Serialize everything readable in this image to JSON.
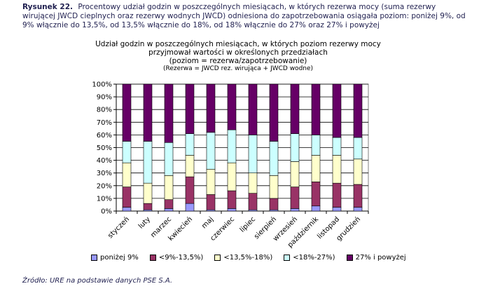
{
  "caption": {
    "lead": "Rysunek 22.",
    "text": "Procentowy udział godzin w poszczególnych miesiącach, w których rezerwa mocy (suma rezerwy wirującej JWCD cieplnych oraz rezerwy wodnych JWCD) odniesiona do zapotrzebowania osiągała poziom: poniżej 9%, od 9% włącznie do 13,5%, od 13,5% włącznie do 18%, od 18% włącznie do 27% oraz 27% i powyżej"
  },
  "chart_title": {
    "line1": "Udział godzin w poszczególnych miesiącach, w których poziom rezerwy mocy",
    "line2": "przyjmował wartości w określonych przedziałach",
    "line3": "(poziom = rezerwa/zapotrzebowanie)",
    "line4": "(Rezerwa = JWCD rez. wirująca + JWCD wodne)"
  },
  "source": "Źródło: URE na podstawie danych PSE S.A.",
  "chart_data": {
    "type": "bar",
    "stacked": true,
    "categories": [
      "styczeń",
      "luty",
      "marzec",
      "kwiecień",
      "maj",
      "czerwiec",
      "lipiec",
      "sierpień",
      "wrzesień",
      "październik",
      "listopad",
      "grudzień"
    ],
    "y_ticks": [
      "0%",
      "10%",
      "20%",
      "30%",
      "40%",
      "50%",
      "60%",
      "70%",
      "80%",
      "90%",
      "100%"
    ],
    "ylim": [
      0,
      100
    ],
    "series": [
      {
        "name": "poniżej 9%",
        "color": "#9999ff",
        "values": [
          3,
          1,
          2,
          6,
          1,
          2,
          1,
          1,
          2,
          4,
          3,
          3
        ]
      },
      {
        "name": "<9%-13,5%)",
        "color": "#993366",
        "values": [
          16,
          5,
          7,
          21,
          12,
          14,
          13,
          9,
          17,
          19,
          19,
          18
        ]
      },
      {
        "name": "<13,5%-18%)",
        "color": "#ffffcc",
        "values": [
          19,
          16,
          19,
          17,
          20,
          22,
          16,
          18,
          20,
          21,
          22,
          20
        ]
      },
      {
        "name": "<18%-27%)",
        "color": "#ccffff",
        "values": [
          17,
          33,
          26,
          17,
          29,
          26,
          30,
          27,
          22,
          16,
          14,
          17
        ]
      },
      {
        "name": "27% i powyżej",
        "color": "#660066",
        "values": [
          45,
          45,
          46,
          39,
          38,
          36,
          40,
          45,
          39,
          40,
          42,
          42
        ]
      }
    ],
    "legend_position": "bottom",
    "grid": true
  }
}
